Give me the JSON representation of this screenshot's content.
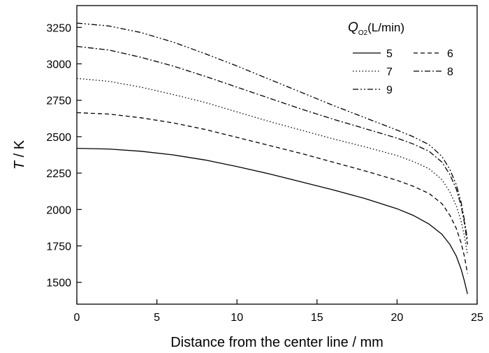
{
  "chart_data": {
    "type": "line",
    "xlabel": "Distance from the center line / mm",
    "ylabel": {
      "symbol": "T",
      "unit": " / K"
    },
    "xlim": [
      0,
      25
    ],
    "ylim": [
      1350,
      3400
    ],
    "xticks": [
      0,
      5,
      10,
      15,
      20,
      25
    ],
    "yticks": [
      1500,
      1750,
      2000,
      2250,
      2500,
      2750,
      3000,
      3250
    ],
    "grid": false,
    "legend": {
      "title_symbol": "Q",
      "title_subscript": "O2",
      "title_unit": "(L/min)",
      "placement": "top-right"
    },
    "series": [
      {
        "name": "5",
        "dash": "solid",
        "points": [
          [
            0,
            2420
          ],
          [
            2,
            2415
          ],
          [
            4,
            2400
          ],
          [
            6,
            2375
          ],
          [
            8,
            2340
          ],
          [
            10,
            2295
          ],
          [
            12,
            2245
          ],
          [
            14,
            2190
          ],
          [
            16,
            2135
          ],
          [
            18,
            2075
          ],
          [
            20,
            2005
          ],
          [
            21,
            1960
          ],
          [
            22,
            1900
          ],
          [
            22.8,
            1830
          ],
          [
            23.3,
            1760
          ],
          [
            23.7,
            1680
          ],
          [
            24,
            1590
          ],
          [
            24.2,
            1510
          ],
          [
            24.4,
            1420
          ]
        ]
      },
      {
        "name": "6",
        "dash": "dashed",
        "points": [
          [
            0,
            2665
          ],
          [
            2,
            2655
          ],
          [
            4,
            2630
          ],
          [
            6,
            2595
          ],
          [
            8,
            2550
          ],
          [
            10,
            2495
          ],
          [
            12,
            2440
          ],
          [
            14,
            2385
          ],
          [
            16,
            2325
          ],
          [
            18,
            2265
          ],
          [
            20,
            2200
          ],
          [
            21,
            2160
          ],
          [
            22,
            2110
          ],
          [
            22.8,
            2040
          ],
          [
            23.3,
            1960
          ],
          [
            23.7,
            1870
          ],
          [
            24,
            1770
          ],
          [
            24.2,
            1680
          ],
          [
            24.4,
            1560
          ]
        ]
      },
      {
        "name": "7",
        "dash": "dotted",
        "points": [
          [
            0,
            2900
          ],
          [
            2,
            2880
          ],
          [
            4,
            2840
          ],
          [
            6,
            2790
          ],
          [
            8,
            2735
          ],
          [
            10,
            2670
          ],
          [
            12,
            2605
          ],
          [
            14,
            2545
          ],
          [
            16,
            2485
          ],
          [
            18,
            2430
          ],
          [
            20,
            2370
          ],
          [
            21,
            2330
          ],
          [
            22,
            2280
          ],
          [
            22.8,
            2205
          ],
          [
            23.3,
            2120
          ],
          [
            23.7,
            2025
          ],
          [
            24,
            1920
          ],
          [
            24.2,
            1820
          ],
          [
            24.4,
            1690
          ]
        ]
      },
      {
        "name": "8",
        "dash": "dashdot",
        "points": [
          [
            0,
            3120
          ],
          [
            2,
            3095
          ],
          [
            4,
            3045
          ],
          [
            6,
            2985
          ],
          [
            8,
            2915
          ],
          [
            10,
            2840
          ],
          [
            12,
            2765
          ],
          [
            14,
            2690
          ],
          [
            16,
            2620
          ],
          [
            18,
            2555
          ],
          [
            20,
            2490
          ],
          [
            21,
            2450
          ],
          [
            22,
            2400
          ],
          [
            22.8,
            2325
          ],
          [
            23.3,
            2240
          ],
          [
            23.7,
            2140
          ],
          [
            24,
            2025
          ],
          [
            24.2,
            1910
          ],
          [
            24.4,
            1760
          ]
        ]
      },
      {
        "name": "9",
        "dash": "dashdotdot",
        "points": [
          [
            0,
            3280
          ],
          [
            2,
            3260
          ],
          [
            4,
            3215
          ],
          [
            6,
            3150
          ],
          [
            8,
            3070
          ],
          [
            10,
            2985
          ],
          [
            12,
            2895
          ],
          [
            14,
            2805
          ],
          [
            16,
            2715
          ],
          [
            18,
            2630
          ],
          [
            20,
            2545
          ],
          [
            21,
            2500
          ],
          [
            22,
            2445
          ],
          [
            22.8,
            2365
          ],
          [
            23.3,
            2275
          ],
          [
            23.7,
            2170
          ],
          [
            24,
            2050
          ],
          [
            24.2,
            1930
          ],
          [
            24.4,
            1790
          ]
        ]
      }
    ]
  }
}
